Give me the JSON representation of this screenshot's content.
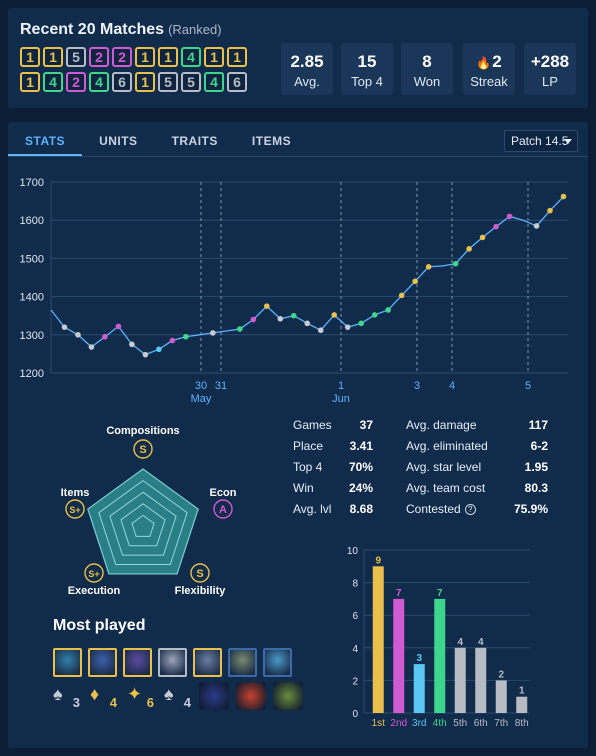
{
  "recent": {
    "title": "Recent 20 Matches",
    "subtitle": "(Ranked)",
    "row1": [
      1,
      1,
      5,
      2,
      2,
      1,
      1,
      4,
      1,
      1
    ],
    "row2": [
      1,
      4,
      2,
      4,
      6,
      1,
      5,
      5,
      4,
      6
    ],
    "summary": [
      {
        "value": "2.85",
        "label": "Avg."
      },
      {
        "value": "15",
        "label": "Top 4"
      },
      {
        "value": "8",
        "label": "Won"
      },
      {
        "value": "2",
        "label": "Streak",
        "icon": "flame-icon"
      },
      {
        "value": "+288",
        "label": "LP"
      }
    ]
  },
  "tabs": [
    "STATS",
    "UNITS",
    "TRAITS",
    "ITEMS"
  ],
  "patch": "Patch 14.5",
  "placement_colors": {
    "1": "#e8c04a",
    "2": "#d05ad2",
    "3": "#5ac8f5",
    "4": "#3dd68c",
    "5": "#b7bcc4",
    "6": "#b7bcc4",
    "7": "#b7bcc4",
    "8": "#b7bcc4"
  },
  "lp_chart": {
    "type": "line",
    "y_ticks": [
      "1700",
      "1600",
      "1500",
      "1400",
      "1300",
      "1200"
    ],
    "ylim": [
      1200,
      1700
    ],
    "x_labels": [
      {
        "day": "30",
        "month": "May"
      },
      {
        "day": "31",
        "month": ""
      },
      {
        "day": "1",
        "month": "Jun"
      },
      {
        "day": "3",
        "month": ""
      },
      {
        "day": "4",
        "month": ""
      },
      {
        "day": "5",
        "month": ""
      }
    ],
    "points": [
      [
        0,
        1365,
        0
      ],
      [
        3,
        1320,
        5
      ],
      [
        6,
        1300,
        5
      ],
      [
        9,
        1268,
        5
      ],
      [
        12,
        1295,
        2
      ],
      [
        15,
        1322,
        2
      ],
      [
        18,
        1275,
        5
      ],
      [
        21,
        1248,
        5
      ],
      [
        24,
        1262,
        3
      ],
      [
        27,
        1285,
        2
      ],
      [
        30,
        1295,
        4
      ],
      [
        33,
        1300,
        0
      ],
      [
        36,
        1305,
        5
      ],
      [
        39,
        1310,
        0
      ],
      [
        42,
        1315,
        4
      ],
      [
        45,
        1340,
        2
      ],
      [
        48,
        1375,
        1
      ],
      [
        51,
        1342,
        5
      ],
      [
        54,
        1350,
        4
      ],
      [
        57,
        1330,
        5
      ],
      [
        60,
        1312,
        5
      ],
      [
        63,
        1352,
        1
      ],
      [
        66,
        1320,
        5
      ],
      [
        69,
        1330,
        4
      ],
      [
        72,
        1352,
        4
      ],
      [
        75,
        1365,
        4
      ],
      [
        78,
        1403,
        1
      ],
      [
        81,
        1440,
        1
      ],
      [
        84,
        1478,
        1
      ],
      [
        87,
        1480,
        0
      ],
      [
        90,
        1486,
        4
      ],
      [
        93,
        1525,
        1
      ],
      [
        96,
        1555,
        1
      ],
      [
        99,
        1583,
        2
      ],
      [
        102,
        1610,
        2
      ],
      [
        105,
        1600,
        0
      ],
      [
        108,
        1585,
        5
      ],
      [
        111,
        1625,
        1
      ],
      [
        114,
        1662,
        1
      ]
    ]
  },
  "radar": {
    "axes": [
      {
        "label": "Compositions",
        "grade": "S",
        "color": "#e8c04a"
      },
      {
        "label": "Econ",
        "grade": "A",
        "color": "#d05ad2"
      },
      {
        "label": "Flexibility",
        "grade": "S",
        "color": "#e8c04a"
      },
      {
        "label": "Execution",
        "grade": "S+",
        "color": "#e8c04a"
      },
      {
        "label": "Items",
        "grade": "S+",
        "color": "#e8c04a"
      }
    ]
  },
  "stats": {
    "left": [
      {
        "k": "Games",
        "v": "37"
      },
      {
        "k": "Place",
        "v": "3.41"
      },
      {
        "k": "Top 4",
        "v": "70%"
      },
      {
        "k": "Win",
        "v": "24%"
      },
      {
        "k": "Avg. lvl",
        "v": "8.68"
      }
    ],
    "right": [
      {
        "k": "Avg. damage",
        "v": "117"
      },
      {
        "k": "Avg. eliminated",
        "v": "6-2"
      },
      {
        "k": "Avg. star level",
        "v": "1.95"
      },
      {
        "k": "Avg. team cost",
        "v": "80.3"
      },
      {
        "k": "Contested",
        "v": "75.9%",
        "icon": "help-icon"
      }
    ]
  },
  "most_played": {
    "title": "Most played",
    "units": [
      {
        "border": "#e8c04a",
        "fill": "#2f7fa8"
      },
      {
        "border": "#e8c04a",
        "fill": "#3a5fa8"
      },
      {
        "border": "#e8c04a",
        "fill": "#5a4aa0"
      },
      {
        "border": "#b7bcc4",
        "fill": "#9aa4b8"
      },
      {
        "border": "#e8c04a",
        "fill": "#6a7fa0"
      },
      {
        "border": "#3a6aa8",
        "fill": "#7a8a70"
      },
      {
        "border": "#3a6aa8",
        "fill": "#4a9ac8"
      }
    ],
    "traits": [
      {
        "glyph": "♠",
        "num": "3",
        "color": "#c7ccd4"
      },
      {
        "glyph": "♦",
        "num": "4",
        "color": "#e8c04a"
      },
      {
        "glyph": "✦",
        "num": "6",
        "color": "#e8c04a"
      },
      {
        "glyph": "♠",
        "num": "4",
        "color": "#c7ccd4"
      }
    ],
    "items": [
      {
        "fill": "#2b3a8a"
      },
      {
        "fill": "#c8402a"
      },
      {
        "fill": "#6a8a3a"
      }
    ]
  },
  "placement_chart": {
    "type": "bar",
    "categories": [
      "1st",
      "2nd",
      "3rd",
      "4th",
      "5th",
      "6th",
      "7th",
      "8th"
    ],
    "values": [
      9,
      7,
      3,
      7,
      4,
      4,
      2,
      1
    ],
    "y_ticks": [
      "10",
      "8",
      "6",
      "4",
      "2",
      "0"
    ],
    "ylim": [
      0,
      10
    ]
  }
}
